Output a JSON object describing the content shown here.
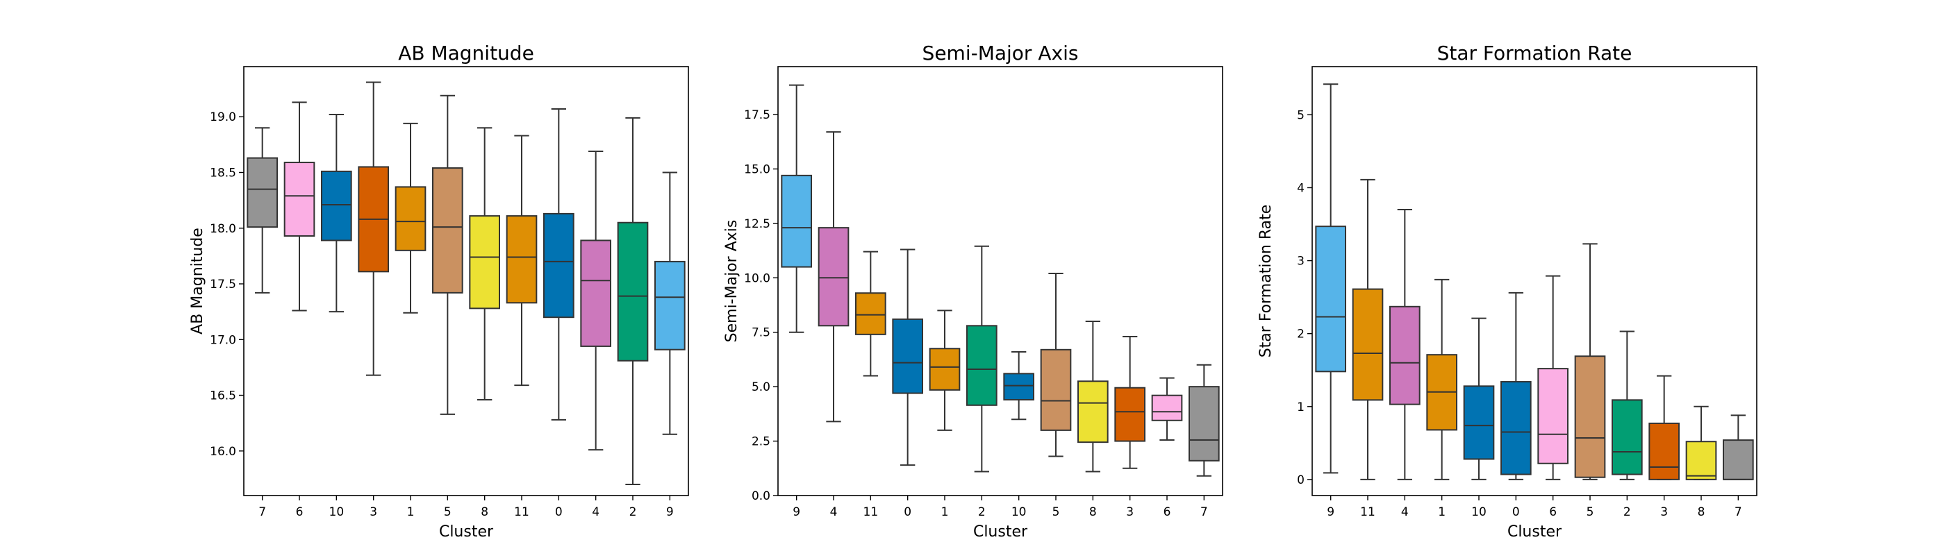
{
  "chart_data": [
    {
      "type": "box",
      "title": "AB Magnitude",
      "xlabel": "Cluster",
      "ylabel": "AB Magnitude",
      "ylim": [
        15.6,
        19.45
      ],
      "yticks": [
        16.0,
        16.5,
        17.0,
        17.5,
        18.0,
        18.5,
        19.0
      ],
      "ytick_labels": [
        "16.0",
        "16.5",
        "17.0",
        "17.5",
        "18.0",
        "18.5",
        "19.0"
      ],
      "categories": [
        "7",
        "6",
        "10",
        "3",
        "1",
        "5",
        "8",
        "11",
        "0",
        "4",
        "2",
        "9"
      ],
      "boxes": [
        {
          "min": 17.42,
          "q1": 18.01,
          "median": 18.35,
          "q3": 18.63,
          "max": 18.9,
          "color": "#949494"
        },
        {
          "min": 17.26,
          "q1": 17.93,
          "median": 18.29,
          "q3": 18.59,
          "max": 19.13,
          "color": "#fbafe4"
        },
        {
          "min": 17.25,
          "q1": 17.89,
          "median": 18.21,
          "q3": 18.51,
          "max": 19.02,
          "color": "#0173b2"
        },
        {
          "min": 16.68,
          "q1": 17.61,
          "median": 18.08,
          "q3": 18.55,
          "max": 19.31,
          "color": "#d55e00"
        },
        {
          "min": 17.24,
          "q1": 17.8,
          "median": 18.06,
          "q3": 18.37,
          "max": 18.94,
          "color": "#de8f05"
        },
        {
          "min": 16.33,
          "q1": 17.42,
          "median": 18.01,
          "q3": 18.54,
          "max": 19.19,
          "color": "#ca9161"
        },
        {
          "min": 16.46,
          "q1": 17.28,
          "median": 17.74,
          "q3": 18.11,
          "max": 18.9,
          "color": "#ece133"
        },
        {
          "min": 16.59,
          "q1": 17.33,
          "median": 17.74,
          "q3": 18.11,
          "max": 18.83,
          "color": "#de8f05"
        },
        {
          "min": 16.28,
          "q1": 17.2,
          "median": 17.7,
          "q3": 18.13,
          "max": 19.07,
          "color": "#0173b2"
        },
        {
          "min": 16.01,
          "q1": 16.94,
          "median": 17.53,
          "q3": 17.89,
          "max": 18.69,
          "color": "#cc78bc"
        },
        {
          "min": 15.7,
          "q1": 16.81,
          "median": 17.39,
          "q3": 18.05,
          "max": 18.99,
          "color": "#029e73"
        },
        {
          "min": 16.15,
          "q1": 16.91,
          "median": 17.38,
          "q3": 17.7,
          "max": 18.5,
          "color": "#56b4e9"
        }
      ]
    },
    {
      "type": "box",
      "title": "Semi-Major Axis",
      "xlabel": "Cluster",
      "ylabel": "Semi-Major Axis",
      "ylim": [
        0,
        19.7
      ],
      "yticks": [
        0.0,
        2.5,
        5.0,
        7.5,
        10.0,
        12.5,
        15.0,
        17.5
      ],
      "ytick_labels": [
        "0.0",
        "2.5",
        "5.0",
        "7.5",
        "10.0",
        "12.5",
        "15.0",
        "17.5"
      ],
      "categories": [
        "9",
        "4",
        "11",
        "0",
        "1",
        "2",
        "10",
        "5",
        "8",
        "3",
        "6",
        "7"
      ],
      "boxes": [
        {
          "min": 7.5,
          "q1": 10.5,
          "median": 12.3,
          "q3": 14.7,
          "max": 18.85,
          "color": "#56b4e9"
        },
        {
          "min": 3.4,
          "q1": 7.8,
          "median": 10.0,
          "q3": 12.3,
          "max": 16.7,
          "color": "#cc78bc"
        },
        {
          "min": 5.5,
          "q1": 7.4,
          "median": 8.3,
          "q3": 9.3,
          "max": 11.2,
          "color": "#de8f05"
        },
        {
          "min": 1.4,
          "q1": 4.7,
          "median": 6.1,
          "q3": 8.1,
          "max": 11.3,
          "color": "#0173b2"
        },
        {
          "min": 3.0,
          "q1": 4.85,
          "median": 5.9,
          "q3": 6.75,
          "max": 8.5,
          "color": "#de8f05"
        },
        {
          "min": 1.1,
          "q1": 4.15,
          "median": 5.8,
          "q3": 7.8,
          "max": 11.45,
          "color": "#029e73"
        },
        {
          "min": 3.5,
          "q1": 4.4,
          "median": 5.05,
          "q3": 5.6,
          "max": 6.6,
          "color": "#0173b2"
        },
        {
          "min": 1.8,
          "q1": 3.0,
          "median": 4.35,
          "q3": 6.7,
          "max": 10.2,
          "color": "#ca9161"
        },
        {
          "min": 1.1,
          "q1": 2.45,
          "median": 4.25,
          "q3": 5.25,
          "max": 8.0,
          "color": "#ece133"
        },
        {
          "min": 1.25,
          "q1": 2.5,
          "median": 3.85,
          "q3": 4.95,
          "max": 7.3,
          "color": "#d55e00"
        },
        {
          "min": 2.55,
          "q1": 3.45,
          "median": 3.85,
          "q3": 4.6,
          "max": 5.4,
          "color": "#fbafe4"
        },
        {
          "min": 0.9,
          "q1": 1.6,
          "median": 2.55,
          "q3": 5.0,
          "max": 6.0,
          "color": "#949494"
        }
      ]
    },
    {
      "type": "box",
      "title": "Star Formation Rate",
      "xlabel": "Cluster",
      "ylabel": "Star Formation Rate",
      "ylim": [
        -0.22,
        5.66
      ],
      "yticks": [
        0,
        1,
        2,
        3,
        4,
        5
      ],
      "ytick_labels": [
        "0",
        "1",
        "2",
        "3",
        "4",
        "5"
      ],
      "categories": [
        "9",
        "11",
        "4",
        "1",
        "10",
        "0",
        "6",
        "5",
        "2",
        "3",
        "8",
        "7"
      ],
      "boxes": [
        {
          "min": 0.09,
          "q1": 1.48,
          "median": 2.23,
          "q3": 3.47,
          "max": 5.42,
          "color": "#56b4e9"
        },
        {
          "min": 0.0,
          "q1": 1.09,
          "median": 1.73,
          "q3": 2.61,
          "max": 4.11,
          "color": "#de8f05"
        },
        {
          "min": 0.0,
          "q1": 1.03,
          "median": 1.6,
          "q3": 2.37,
          "max": 3.7,
          "color": "#cc78bc"
        },
        {
          "min": 0.0,
          "q1": 0.68,
          "median": 1.2,
          "q3": 1.71,
          "max": 2.74,
          "color": "#de8f05"
        },
        {
          "min": 0.0,
          "q1": 0.28,
          "median": 0.74,
          "q3": 1.28,
          "max": 2.21,
          "color": "#0173b2"
        },
        {
          "min": 0.0,
          "q1": 0.07,
          "median": 0.65,
          "q3": 1.34,
          "max": 2.56,
          "color": "#0173b2"
        },
        {
          "min": 0.0,
          "q1": 0.22,
          "median": 0.62,
          "q3": 1.52,
          "max": 2.79,
          "color": "#fbafe4"
        },
        {
          "min": 0.0,
          "q1": 0.03,
          "median": 0.57,
          "q3": 1.69,
          "max": 3.23,
          "color": "#ca9161"
        },
        {
          "min": 0.0,
          "q1": 0.07,
          "median": 0.38,
          "q3": 1.09,
          "max": 2.03,
          "color": "#029e73"
        },
        {
          "min": 0.0,
          "q1": 0.0,
          "median": 0.17,
          "q3": 0.77,
          "max": 1.42,
          "color": "#d55e00"
        },
        {
          "min": 0.0,
          "q1": 0.0,
          "median": 0.05,
          "q3": 0.52,
          "max": 1.0,
          "color": "#ece133"
        },
        {
          "min": 0.0,
          "q1": 0.0,
          "median": 0.0,
          "q3": 0.54,
          "max": 0.88,
          "color": "#949494"
        }
      ]
    }
  ]
}
